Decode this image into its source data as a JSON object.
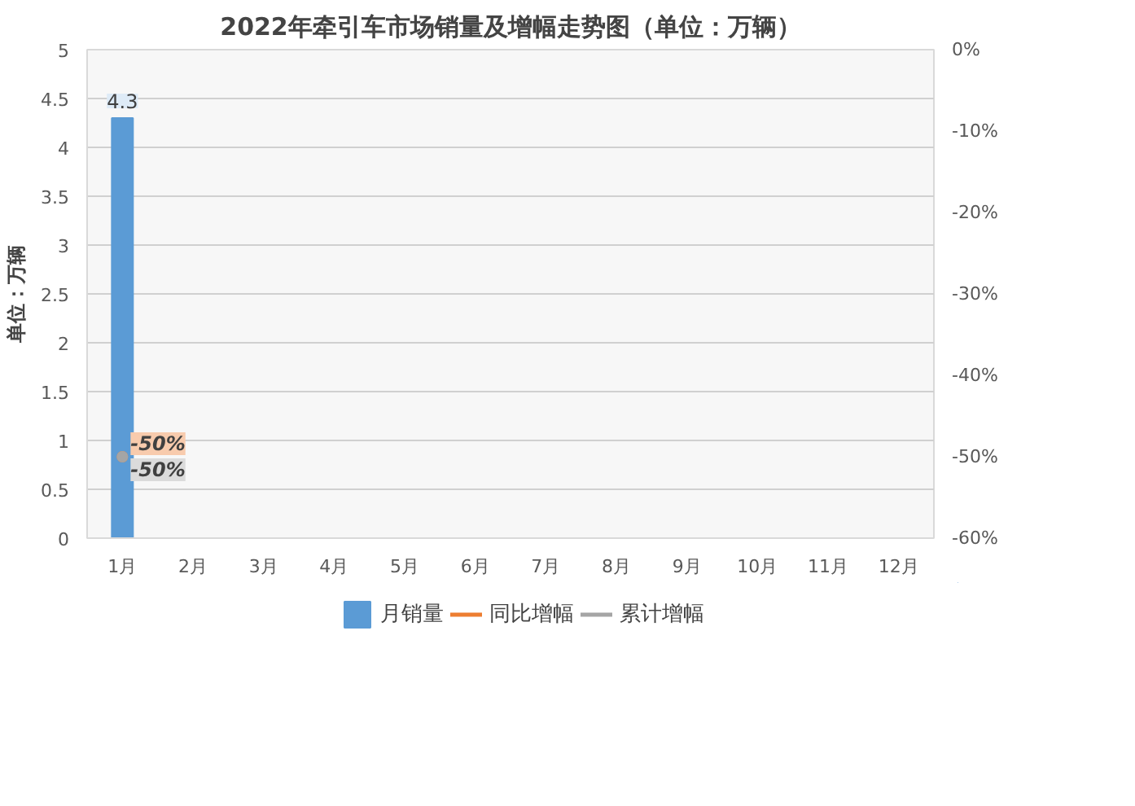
{
  "chart_data": {
    "type": "bar",
    "title": "2022年牵引车市场销量及增幅走势图（单位：万辆）",
    "ylabel": "单位：万辆",
    "categories": [
      "1月",
      "2月",
      "3月",
      "4月",
      "5月",
      "6月",
      "7月",
      "8月",
      "9月",
      "10月",
      "11月",
      "12月"
    ],
    "series": [
      {
        "name": "月销量",
        "color": "#5b9bd5",
        "values": [
          4.3,
          null,
          null,
          null,
          null,
          null,
          null,
          null,
          null,
          null,
          null,
          null
        ],
        "value_labels": [
          "4.3",
          null,
          null,
          null,
          null,
          null,
          null,
          null,
          null,
          null,
          null,
          null
        ]
      },
      {
        "name": "同比增幅",
        "type": "line",
        "axis": "y2",
        "color": "#ed7d31",
        "values": [
          -50,
          null,
          null,
          null,
          null,
          null,
          null,
          null,
          null,
          null,
          null,
          null
        ],
        "value_labels": [
          "-50%",
          null,
          null,
          null,
          null,
          null,
          null,
          null,
          null,
          null,
          null,
          null
        ]
      },
      {
        "name": "累计增幅",
        "type": "line",
        "axis": "y2",
        "color": "#a5a5a5",
        "values": [
          -50,
          null,
          null,
          null,
          null,
          null,
          null,
          null,
          null,
          null,
          null,
          null
        ],
        "value_labels": [
          "-50%",
          null,
          null,
          null,
          null,
          null,
          null,
          null,
          null,
          null,
          null,
          null
        ]
      }
    ],
    "ylim": [
      0,
      5
    ],
    "yticks": [
      0,
      0.5,
      1,
      1.5,
      2,
      2.5,
      3,
      3.5,
      4,
      4.5,
      5
    ],
    "y2lim": [
      -60,
      0
    ],
    "y2ticks": [
      {
        "value": -60,
        "label": "-60%"
      },
      {
        "value": -50,
        "label": "-50%"
      },
      {
        "value": -40,
        "label": "-40%"
      },
      {
        "value": -30,
        "label": "-30%"
      },
      {
        "value": -20,
        "label": "-20%"
      },
      {
        "value": -10,
        "label": "-10%"
      },
      {
        "value": 0,
        "label": "0%"
      }
    ],
    "grid": "y",
    "legend": "bottom",
    "marker": "circle"
  }
}
